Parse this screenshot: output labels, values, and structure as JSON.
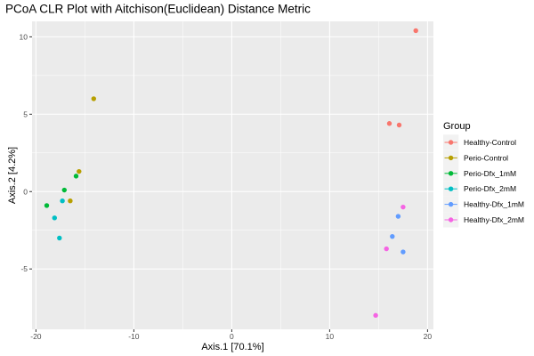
{
  "chart_data": {
    "type": "scatter",
    "title": "PCoA CLR Plot with Aitchison(Euclidean) Distance Metric",
    "xlabel": "Axis.1   [70.1%]",
    "ylabel": "Axis.2   [4.2%]",
    "xlim": [
      -20.4,
      20.6
    ],
    "ylim": [
      -8.9,
      11.0
    ],
    "x_ticks": [
      -20,
      -10,
      0,
      10,
      20
    ],
    "y_ticks": [
      -5,
      0,
      5,
      10
    ],
    "grid": true,
    "legend": {
      "title": "Group",
      "placement": "right"
    },
    "series": [
      {
        "name": "Healthy-Control",
        "color": "#F8766D",
        "points": [
          [
            18.8,
            10.4
          ],
          [
            16.1,
            4.4
          ],
          [
            17.1,
            4.3
          ]
        ]
      },
      {
        "name": "Perio-Control",
        "color": "#B79F00",
        "points": [
          [
            -14.1,
            6.0
          ],
          [
            -15.6,
            1.3
          ],
          [
            -16.5,
            -0.6
          ]
        ]
      },
      {
        "name": "Perio-Dfx_1mM",
        "color": "#00BA38",
        "points": [
          [
            -17.1,
            0.1
          ],
          [
            -15.9,
            1.0
          ],
          [
            -18.9,
            -0.9
          ]
        ]
      },
      {
        "name": "Perio-Dfx_2mM",
        "color": "#00BFC4",
        "points": [
          [
            -17.3,
            -0.6
          ],
          [
            -18.1,
            -1.7
          ],
          [
            -17.6,
            -3.0
          ]
        ]
      },
      {
        "name": "Healthy-Dfx_1mM",
        "color": "#619CFF",
        "points": [
          [
            17.0,
            -1.6
          ],
          [
            16.4,
            -2.9
          ],
          [
            17.5,
            -3.9
          ]
        ]
      },
      {
        "name": "Healthy-Dfx_2mM",
        "color": "#F564E3",
        "points": [
          [
            17.5,
            -1.0
          ],
          [
            15.8,
            -3.7
          ],
          [
            14.7,
            -8.0
          ]
        ]
      }
    ]
  }
}
